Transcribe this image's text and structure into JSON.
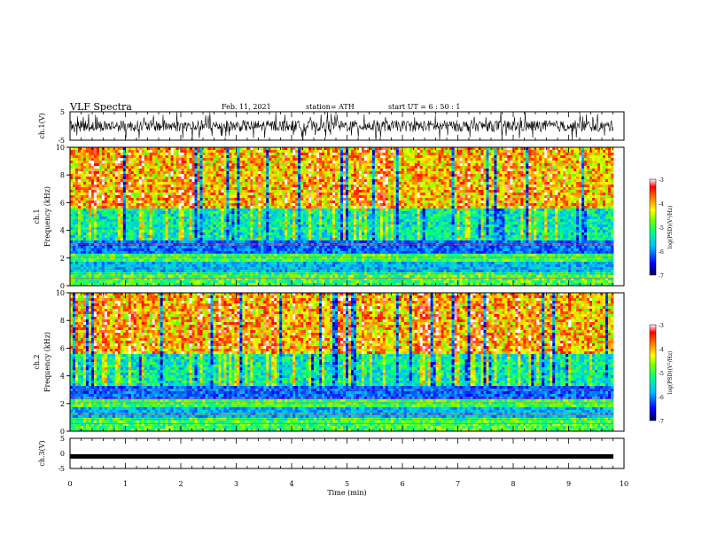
{
  "header": {
    "title": "VLF Spectra",
    "date": "Feb. 11, 2021",
    "station": "station= ATH",
    "start": "start  UT =   6  : 50 : 1"
  },
  "colors": {
    "spectrogram_scale": [
      "#00004f",
      "#0000ff",
      "#00c0ff",
      "#00ff80",
      "#80ff00",
      "#ffff00",
      "#ff8000",
      "#ff0000",
      "#ffffff"
    ],
    "trace": "#000000"
  },
  "chart_data": [
    {
      "type": "line",
      "name": "ch1-waveform",
      "ylabel": "ch.1(V)",
      "ylim": [
        -5,
        5
      ],
      "yticks": [
        "5",
        "-5"
      ],
      "xlim": [
        0,
        10
      ],
      "description_level": "broadband noise between about -3 and 3 V with frequent spikes to the limits"
    },
    {
      "type": "heatmap",
      "name": "ch1-spectrogram",
      "ylabel": "ch.1\nFrequency (kHz)",
      "ylim": [
        0,
        10
      ],
      "yticks": [
        "0",
        "2",
        "4",
        "6",
        "8",
        "10"
      ],
      "xlim": [
        0,
        10
      ],
      "colorbar": {
        "label": "log(PSD)(V²/Hz)",
        "ticks": [
          "-3",
          "-4",
          "-5",
          "-6",
          "-7"
        ],
        "range": [
          -7,
          -3
        ]
      }
    },
    {
      "type": "heatmap",
      "name": "ch2-spectrogram",
      "ylabel": "ch.2\nFrequency (kHz)",
      "ylim": [
        0,
        10
      ],
      "yticks": [
        "0",
        "2",
        "4",
        "6",
        "8",
        "10"
      ],
      "xlim": [
        0,
        10
      ],
      "colorbar": {
        "label": "log(PSD)(V²/Hz)",
        "ticks": [
          "-3",
          "-4",
          "-5",
          "-6",
          "-7"
        ],
        "range": [
          -7,
          -3
        ]
      }
    },
    {
      "type": "line",
      "name": "ch3-waveform",
      "ylabel": "ch.3(V)",
      "ylim": [
        -5,
        5
      ],
      "yticks": [
        "5",
        "0",
        "-5"
      ],
      "xlim": [
        0,
        10
      ],
      "values_level": -1
    }
  ],
  "xaxis": {
    "label": "Time (min)",
    "ticks": [
      "0",
      "1",
      "2",
      "3",
      "4",
      "5",
      "6",
      "7",
      "8",
      "9",
      "10"
    ]
  }
}
